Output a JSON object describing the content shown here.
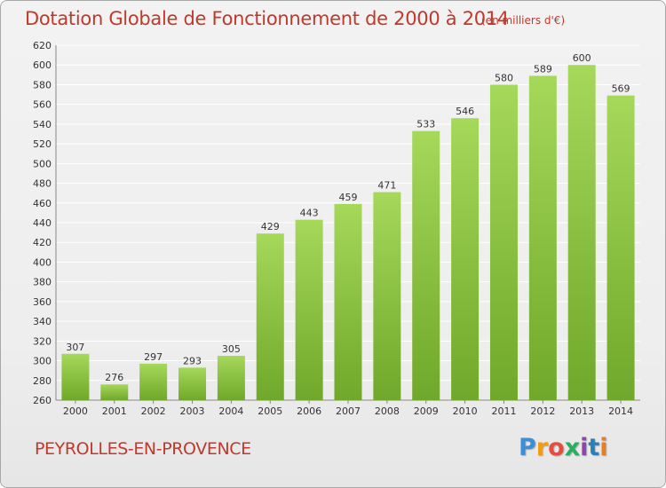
{
  "header": {
    "title": "Dotation Globale de Fonctionnement de 2000 à 2014",
    "subtitle": "(en milliers d'€)"
  },
  "footer": {
    "commune": "PEYROLLES-EN-PROVENCE",
    "logo": "Proxiti"
  },
  "colors": {
    "title": "#c0392b",
    "bar_light": "#a6d85a",
    "bar_dark": "#6fa82a",
    "grid": "#ffffff",
    "text": "#333333"
  },
  "chart_data": {
    "type": "bar",
    "categories": [
      "2000",
      "2001",
      "2002",
      "2003",
      "2004",
      "2005",
      "2006",
      "2007",
      "2008",
      "2009",
      "2010",
      "2011",
      "2012",
      "2013",
      "2014"
    ],
    "values": [
      307,
      276,
      297,
      293,
      305,
      429,
      443,
      459,
      471,
      533,
      546,
      580,
      589,
      600,
      569
    ],
    "ylim": [
      260,
      620
    ],
    "yticks": [
      260,
      280,
      300,
      320,
      340,
      360,
      380,
      400,
      420,
      440,
      460,
      480,
      500,
      520,
      540,
      560,
      580,
      600,
      620
    ],
    "grid": true,
    "xlabel": "",
    "ylabel": ""
  }
}
